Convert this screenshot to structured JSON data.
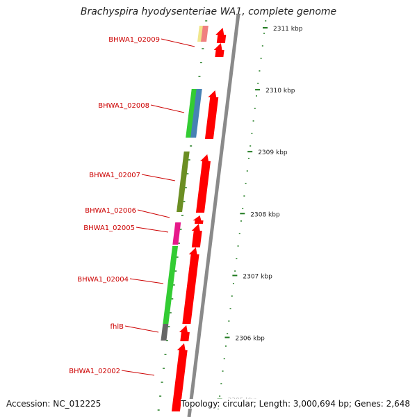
{
  "title": "Brachyspira hyodysenteriae WA1, complete genome",
  "accession_text": "Accession: NC_012225",
  "topology_text": "Topology: circular; Length: 3,000,694 bp; Genes: 2,648",
  "ruler": [
    {
      "kbp": 2311,
      "label": "2311 kbp"
    },
    {
      "kbp": 2310,
      "label": "2310 kbp"
    },
    {
      "kbp": 2309,
      "label": "2309 kbp"
    },
    {
      "kbp": 2308,
      "label": "2308 kbp"
    },
    {
      "kbp": 2307,
      "label": "2307 kbp"
    },
    {
      "kbp": 2306,
      "label": "2306 kbp"
    },
    {
      "kbp": 2305,
      "label": "2305 kbp"
    }
  ],
  "genes": [
    {
      "name": "BHWA1_02009"
    },
    {
      "name": "BHWA1_02008"
    },
    {
      "name": "BHWA1_02007"
    },
    {
      "name": "BHWA1_02006"
    },
    {
      "name": "BHWA1_02005"
    },
    {
      "name": "BHWA1_02004"
    },
    {
      "name": "fhlB"
    },
    {
      "name": "BHWA1_02002"
    }
  ],
  "colors": {
    "backbone": "#8a8a8a",
    "cds": "#ff0000",
    "label": "#cc0000",
    "ticks": "#1f7a1f",
    "cog_yellow": "#f0e68c",
    "cog_pink": "#f08080",
    "cog_green": "#33cc33",
    "cog_blue": "#4682b4",
    "cog_olive": "#6b8e23",
    "cog_magenta": "#e6198a",
    "cog_gray": "#666666"
  }
}
